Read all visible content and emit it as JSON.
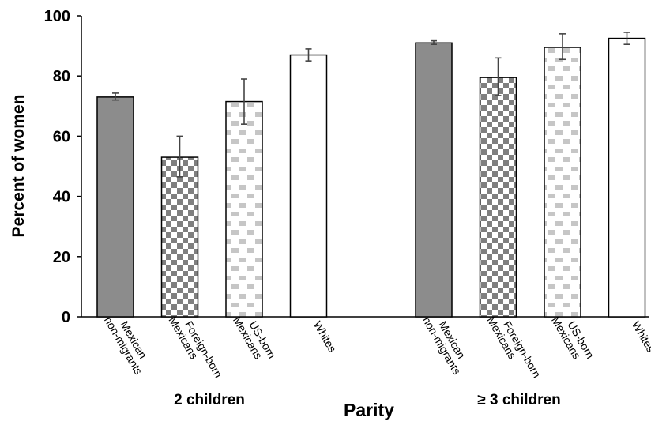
{
  "chart_data": {
    "type": "bar",
    "title": "",
    "ylabel": "Percent of women",
    "xlabel": "Parity",
    "ylim": [
      0,
      100
    ],
    "yticks": [
      0,
      20,
      40,
      60,
      80,
      100
    ],
    "grid": false,
    "groups": [
      "2 children",
      "≥ 3 children"
    ],
    "categories": [
      [
        "Mexican",
        "non-migrants"
      ],
      [
        "Foreign-born",
        "Mexicans"
      ],
      [
        "US-born",
        "Mexicans"
      ],
      [
        "Whites"
      ]
    ],
    "patterns": [
      "solid-gray",
      "checkerboard",
      "dashed-dots",
      "white"
    ],
    "colors": {
      "solid": "#8c8c8c",
      "checker": "#7f7f7f",
      "dash": "#c6c6c6",
      "outline": "#000000",
      "errorbar": "#444444"
    },
    "bars": [
      {
        "group": 0,
        "category": 0,
        "value": 73,
        "err_low": 72,
        "err_high": 74.3
      },
      {
        "group": 0,
        "category": 1,
        "value": 53,
        "err_low": 46.5,
        "err_high": 60
      },
      {
        "group": 0,
        "category": 2,
        "value": 71.5,
        "err_low": 64,
        "err_high": 79
      },
      {
        "group": 0,
        "category": 3,
        "value": 87,
        "err_low": 85,
        "err_high": 89
      },
      {
        "group": 1,
        "category": 0,
        "value": 91,
        "err_low": 90.5,
        "err_high": 91.7
      },
      {
        "group": 1,
        "category": 1,
        "value": 79.5,
        "err_low": 73.5,
        "err_high": 86
      },
      {
        "group": 1,
        "category": 2,
        "value": 89.5,
        "err_low": 85.5,
        "err_high": 94
      },
      {
        "group": 1,
        "category": 3,
        "value": 92.5,
        "err_low": 90.5,
        "err_high": 94.5
      }
    ]
  }
}
